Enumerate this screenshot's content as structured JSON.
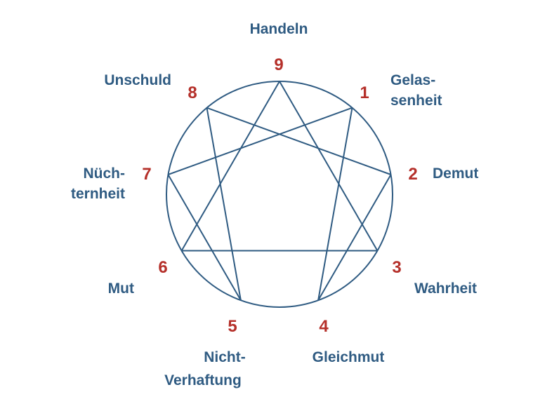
{
  "colors": {
    "line": "#2f5b82",
    "label": "#2f5b82",
    "number": "#b5302a"
  },
  "points": [
    {
      "number": "9",
      "label_lines": [
        "Handeln"
      ]
    },
    {
      "number": "1",
      "label_lines": [
        "Gelas-",
        "senheit"
      ]
    },
    {
      "number": "2",
      "label_lines": [
        "Demut"
      ]
    },
    {
      "number": "3",
      "label_lines": [
        "Wahrheit"
      ]
    },
    {
      "number": "4",
      "label_lines": [
        "Gleichmut"
      ]
    },
    {
      "number": "5",
      "label_lines": [
        "Nicht-",
        "Verhaftung"
      ]
    },
    {
      "number": "6",
      "label_lines": [
        "Mut"
      ]
    },
    {
      "number": "7",
      "label_lines": [
        "Nüch-",
        "ternheit"
      ]
    },
    {
      "number": "8",
      "label_lines": [
        "Unschuld"
      ]
    }
  ],
  "triangle": [
    "9",
    "3",
    "6"
  ],
  "hexad": [
    "1",
    "4",
    "2",
    "8",
    "5",
    "7",
    "1"
  ]
}
